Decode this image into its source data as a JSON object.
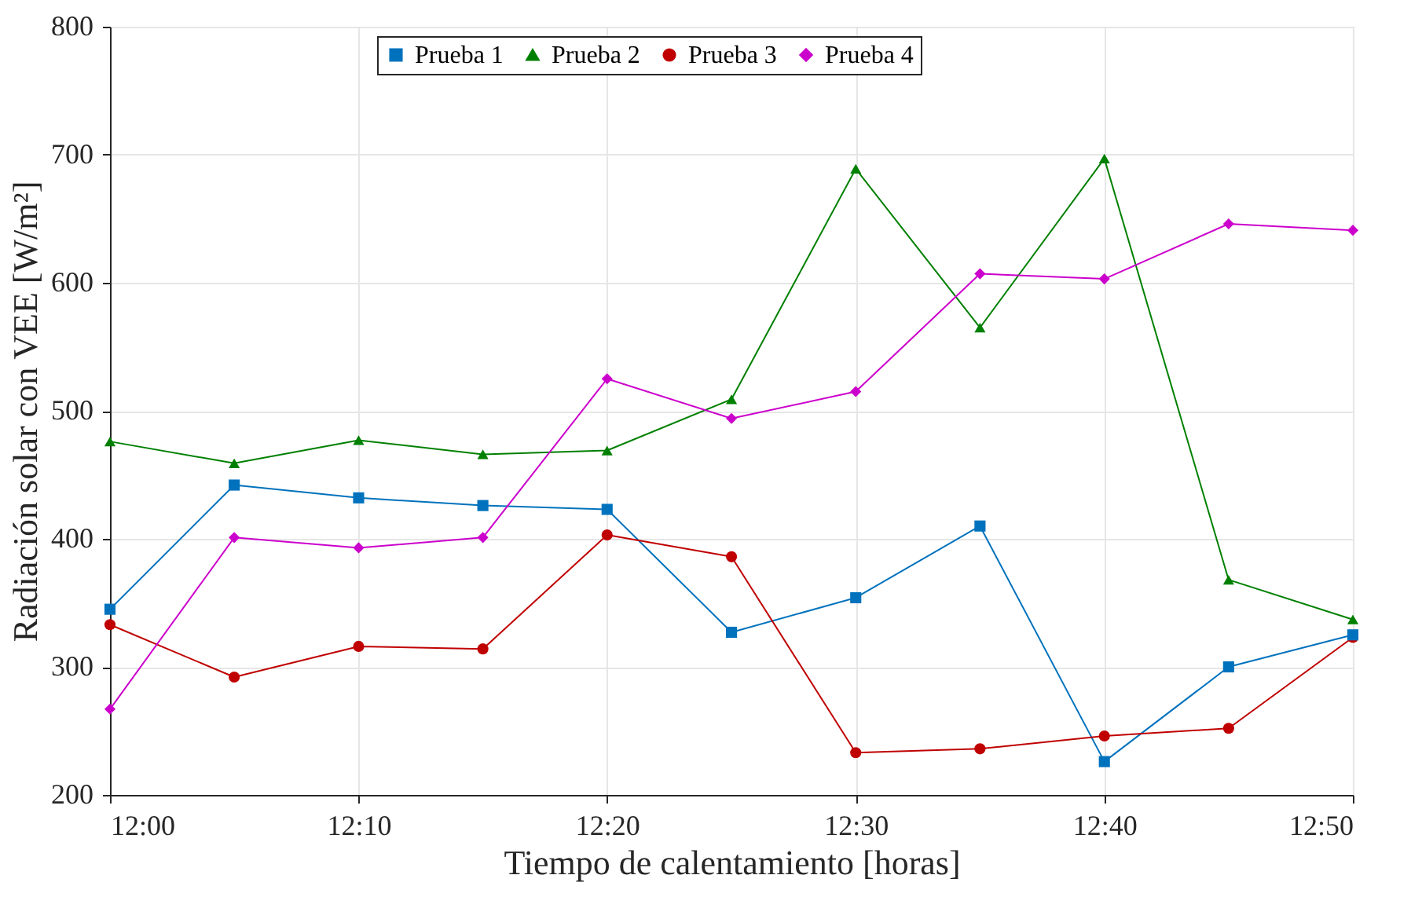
{
  "chart_data": {
    "type": "line",
    "xlabel": "Tiempo de calentamiento [horas]",
    "ylabel": "Radiación solar con VEE [W/m²]",
    "x": [
      12,
      12.0833,
      12.1667,
      12.25,
      12.3333,
      12.4167,
      12.5,
      12.5833,
      12.6667,
      12.75,
      12.8333
    ],
    "series": [
      {
        "name": "Prueba 1",
        "color": "#0072bd",
        "marker": "square",
        "values": [
          345,
          442,
          432,
          426,
          423,
          327,
          354,
          410,
          226,
          300,
          325
        ]
      },
      {
        "name": "Prueba 2",
        "color": "#008000",
        "marker": "triangle",
        "values": [
          476,
          459,
          477,
          466,
          469,
          509,
          689,
          565,
          697,
          368,
          337
        ]
      },
      {
        "name": "Prueba 3",
        "color": "#c00000",
        "marker": "circle",
        "values": [
          333,
          292,
          316,
          314,
          403,
          386,
          233,
          236,
          246,
          252,
          323
        ]
      },
      {
        "name": "Prueba 4",
        "color": "#cc00cc",
        "marker": "diamond",
        "values": [
          267,
          401,
          393,
          401,
          525,
          494,
          515,
          607,
          603,
          646,
          641
        ]
      }
    ],
    "xlim": [
      12,
      12.8333
    ],
    "xticks": [
      {
        "value": 12,
        "label": "12:00"
      },
      {
        "value": 12.1667,
        "label": "12:10"
      },
      {
        "value": 12.3333,
        "label": "12:20"
      },
      {
        "value": 12.5,
        "label": "12:30"
      },
      {
        "value": 12.6667,
        "label": "12:40"
      },
      {
        "value": 12.8333,
        "label": "12:50"
      }
    ],
    "ylim": [
      200,
      800
    ],
    "yticks": [
      200,
      300,
      400,
      500,
      600,
      700,
      800
    ],
    "grid": true,
    "legend": "top",
    "line_style": "solid"
  }
}
